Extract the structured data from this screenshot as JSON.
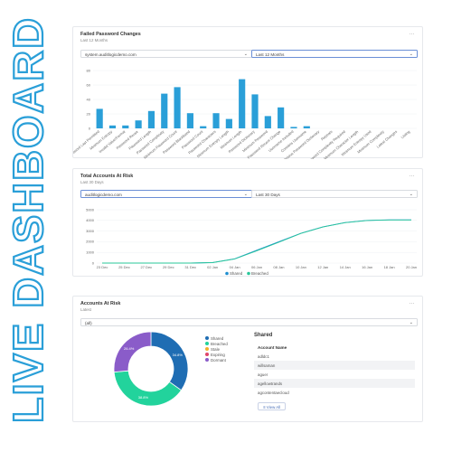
{
  "banner": {
    "text": "LIVE DASHBOARD",
    "color": "#2a9fd8"
  },
  "failed_password": {
    "title": "Failed Password Changes",
    "subtitle": "Last 12 Months",
    "more": "...",
    "domain_select": "system.auditlogicdemo.com",
    "period_select": "Last 12 Months",
    "chart_data": {
      "type": "bar",
      "color": "#2a9fd8",
      "ylim": [
        0,
        80
      ],
      "yticks": [
        0,
        20,
        40,
        60,
        80
      ],
      "categories": [
        "Password Last Permitted",
        "Minimum Entropy",
        "Invalid Value/Format",
        "Password Reuse",
        "Password Length",
        "Password Complexity",
        "Minimum Password Count",
        "Password Blacklisted",
        "Password Count",
        "Password Characters",
        "Minimum Entropy Length",
        "Minimum Length",
        "Password Dictionary",
        "Minimum Password",
        "Password Recent Change",
        "Username Included",
        "Contains Username",
        "Obvious Password Dictionary",
        "Repeats",
        "Password Complexity Required",
        "Minimum Character Length",
        "Minimum Entropy Used",
        "Minimum Complexity",
        "Latest Changes",
        "Listing"
      ],
      "values": [
        27,
        4,
        4,
        11,
        24,
        48,
        57,
        21,
        3,
        21,
        13,
        68,
        47,
        17,
        29,
        2,
        3,
        0,
        0,
        0,
        0,
        0,
        0,
        0,
        0
      ]
    }
  },
  "accounts_at_risk_trend": {
    "title": "Total Accounts At Risk",
    "subtitle": "Last 30 Days",
    "more": "...",
    "domain_select": "auditlogicdemo.com",
    "period_select": "Last 30 Days",
    "chart_data": {
      "type": "line",
      "ylim": [
        0,
        5000
      ],
      "yticks": [
        0,
        1000,
        2000,
        3000,
        4000,
        5000
      ],
      "x": [
        "23 Dec",
        "25 Dec",
        "27 Dec",
        "29 Dec",
        "31 Dec",
        "02 Jan",
        "04 Jan",
        "06 Jan",
        "08 Jan",
        "10 Jan",
        "12 Jan",
        "14 Jan",
        "16 Jan",
        "18 Jan",
        "20 Jan"
      ],
      "series": [
        {
          "name": "Shared",
          "color": "#1f8fd0",
          "values": [
            0,
            0,
            0,
            0,
            0,
            50,
            400,
            1200,
            2000,
            2800,
            3400,
            3800,
            4000,
            4050,
            4050
          ]
        },
        {
          "name": "Breached",
          "color": "#28c79a",
          "values": [
            0,
            0,
            0,
            0,
            0,
            40,
            380,
            1150,
            1950,
            2780,
            3380,
            3790,
            3990,
            4040,
            4040
          ]
        }
      ]
    }
  },
  "accounts_at_risk": {
    "title": "Accounts At Risk",
    "subtitle": "Latest",
    "more": "...",
    "filter_select": "(all)",
    "chart_data": {
      "type": "pie",
      "slices": [
        {
          "name": "Shared",
          "value": 34.8,
          "label": "34.8%",
          "color": "#1f6db3"
        },
        {
          "name": "Breached",
          "value": 38.8,
          "label": "38.8%",
          "color": "#22d39c"
        },
        {
          "name": "Stale",
          "value": 0,
          "label": "",
          "color": "#f2b02b"
        },
        {
          "name": "Expiring",
          "value": 0,
          "label": "",
          "color": "#e0466a"
        },
        {
          "name": "Dormant",
          "value": 26.4,
          "label": "26.4%",
          "color": "#8a5cc9"
        }
      ]
    },
    "legend": [
      "Shared",
      "Breached",
      "Stale",
      "Expiring",
      "Dormant"
    ],
    "shared_title": "Shared",
    "table_header": "Account Name",
    "accounts": [
      "adldc1",
      "willsaman",
      "aguer",
      "agellowtrands",
      "agcontentaecloud"
    ],
    "view_all": "View All"
  }
}
